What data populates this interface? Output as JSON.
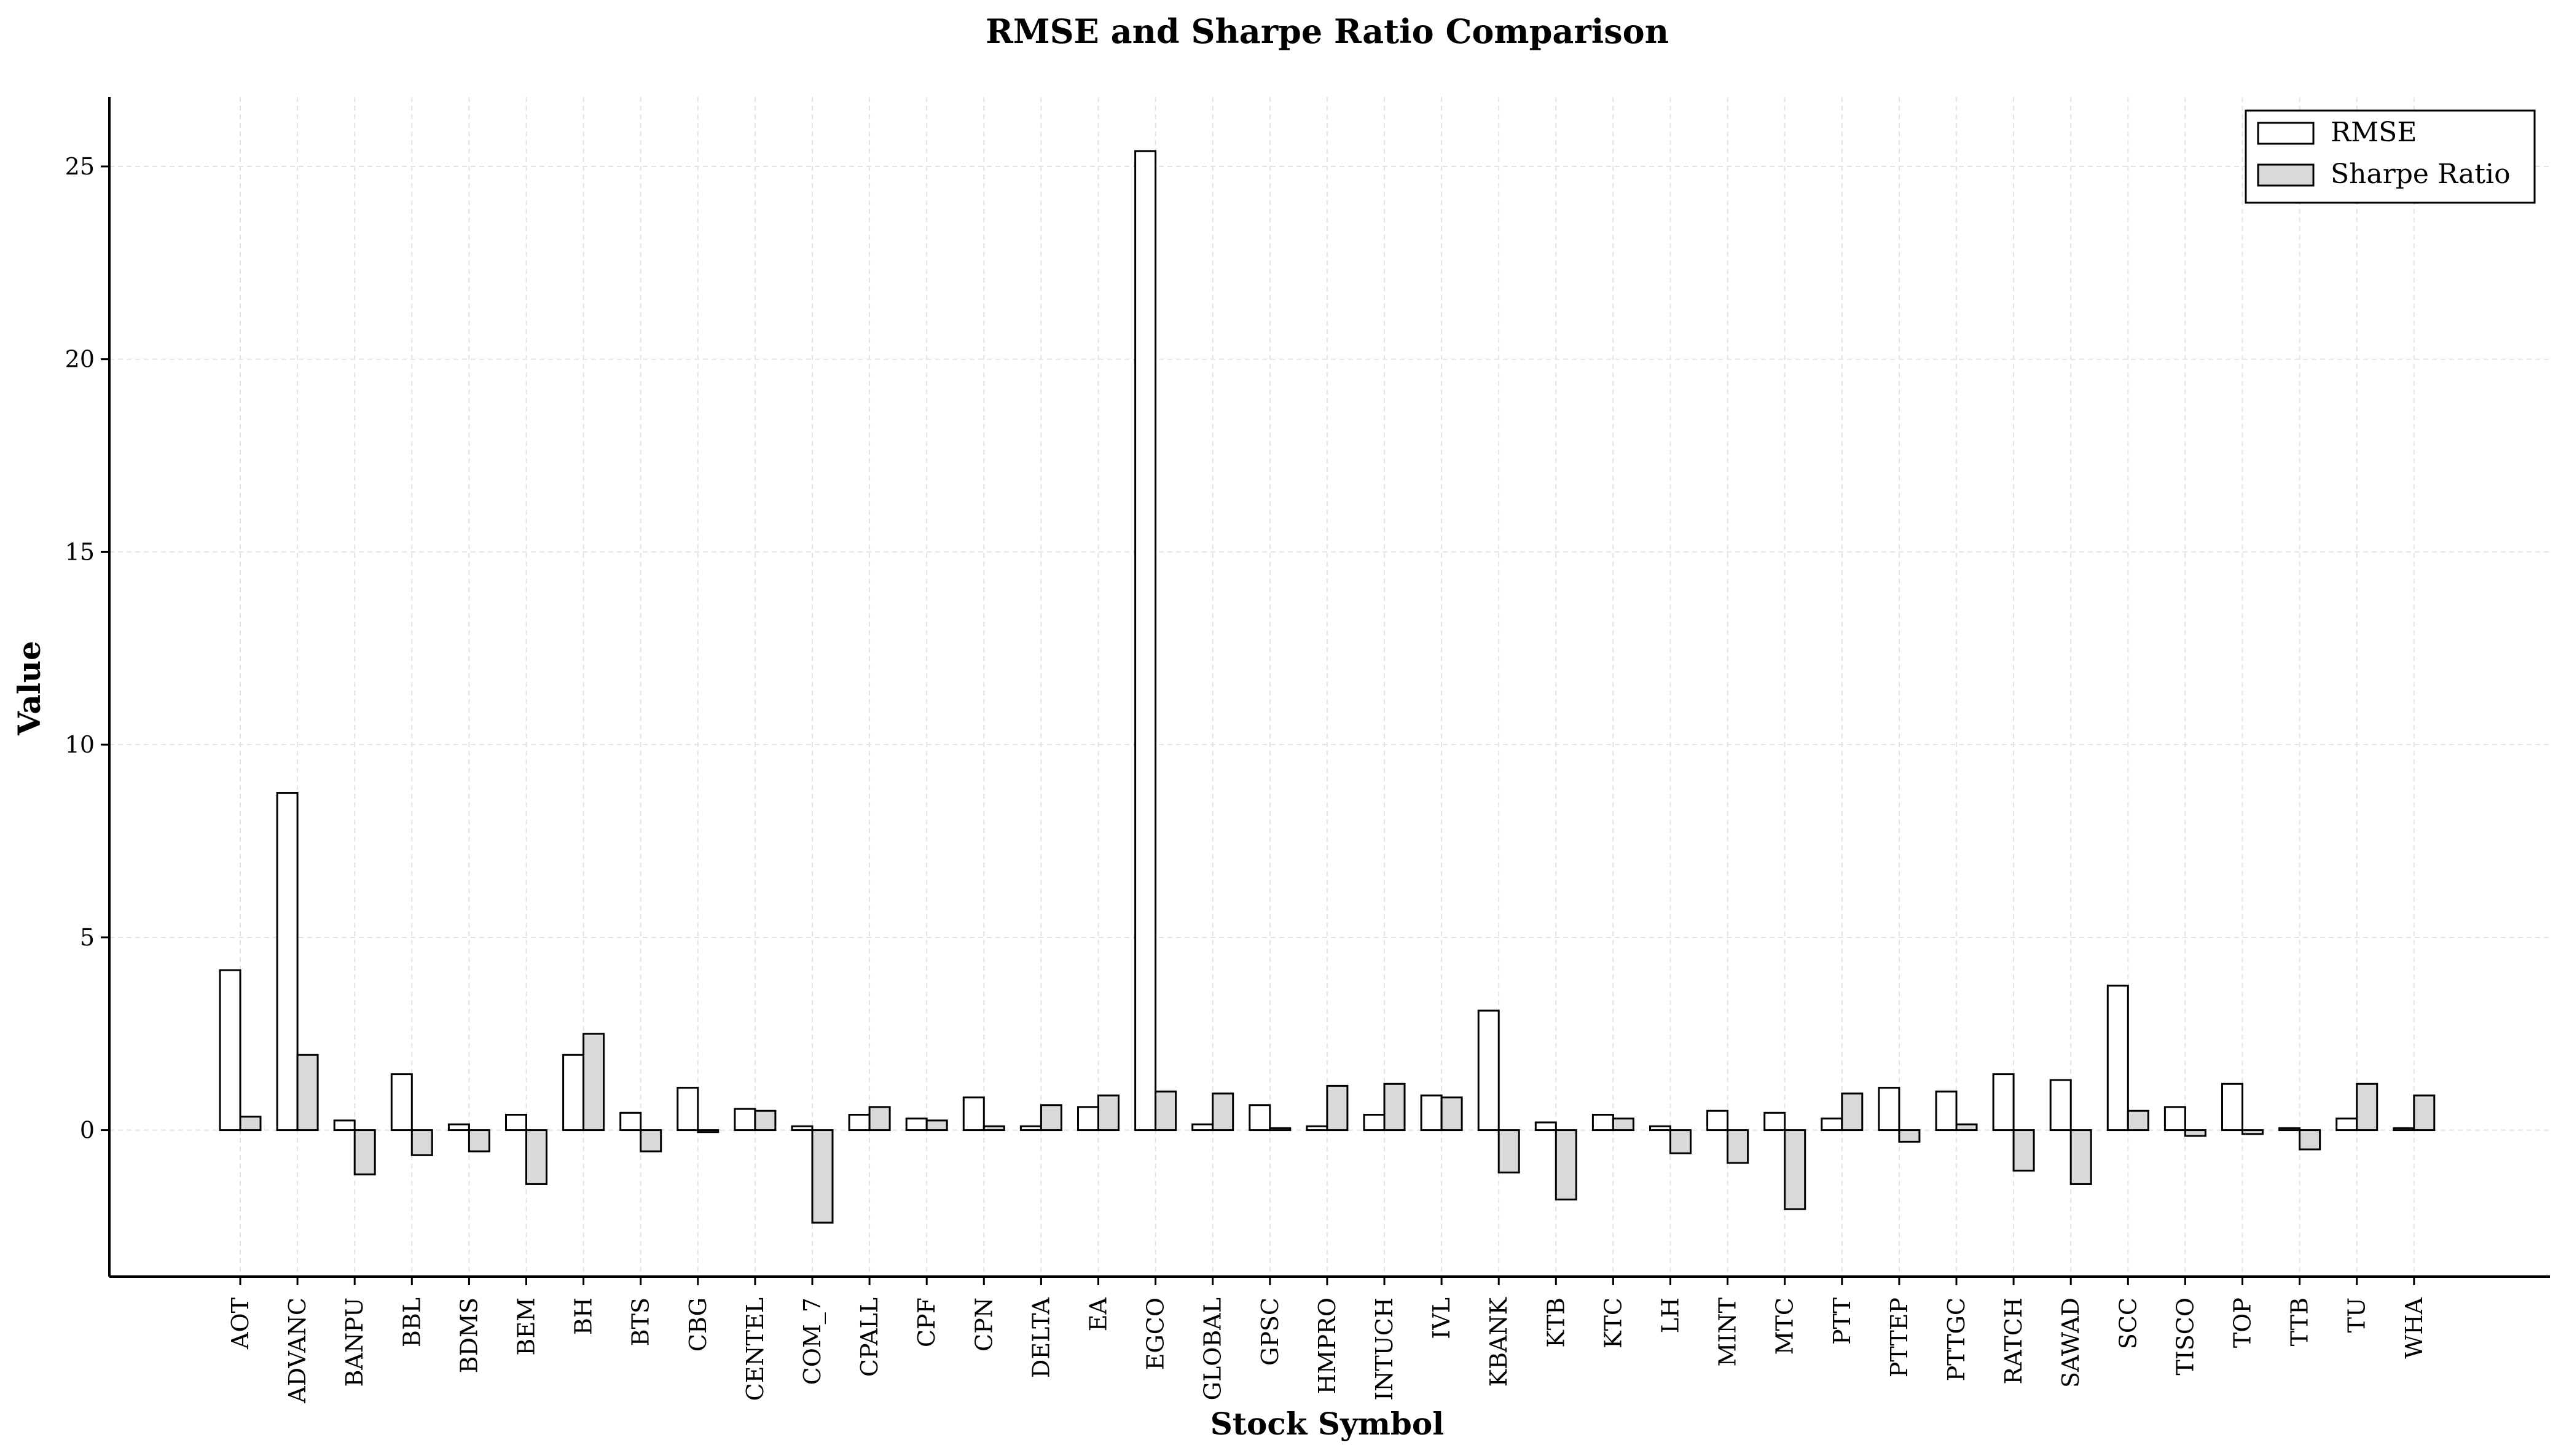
{
  "chart_data": {
    "type": "bar",
    "title": "RMSE and Sharpe Ratio Comparison",
    "xlabel": "Stock Symbol",
    "ylabel": "Value",
    "ylim": [
      -3.8,
      26.8
    ],
    "yticks": [
      0,
      5,
      10,
      15,
      20,
      25
    ],
    "grid": true,
    "legend_position": "top-right",
    "categories": [
      "AOT",
      "ADVANC",
      "BANPU",
      "BBL",
      "BDMS",
      "BEM",
      "BH",
      "BTS",
      "CBG",
      "CENTEL",
      "COM_7",
      "CPALL",
      "CPF",
      "CPN",
      "DELTA",
      "EA",
      "EGCO",
      "GLOBAL",
      "GPSC",
      "HMPRO",
      "INTUCH",
      "IVL",
      "KBANK",
      "KTB",
      "KTC",
      "LH",
      "MINT",
      "MTC",
      "PTT",
      "PTTEP",
      "PTTGC",
      "RATCH",
      "SAWAD",
      "SCC",
      "TISCO",
      "TOP",
      "TTB",
      "TU",
      "WHA"
    ],
    "series": [
      {
        "name": "RMSE",
        "color": "#ffffff",
        "values": [
          4.15,
          8.75,
          0.25,
          1.45,
          0.15,
          0.4,
          1.95,
          0.45,
          1.1,
          0.55,
          0.1,
          0.4,
          0.3,
          0.85,
          0.1,
          0.6,
          25.4,
          0.15,
          0.65,
          0.1,
          0.4,
          0.9,
          3.1,
          0.2,
          0.4,
          0.1,
          0.5,
          0.45,
          0.3,
          1.1,
          1.0,
          1.45,
          1.3,
          3.75,
          0.6,
          1.2,
          0.05,
          0.3,
          0.05
        ]
      },
      {
        "name": "Sharpe Ratio",
        "color": "#d9d9d9",
        "values": [
          0.35,
          1.95,
          -1.15,
          -0.65,
          -0.55,
          -1.4,
          2.5,
          -0.55,
          -0.05,
          0.5,
          -2.4,
          0.6,
          0.25,
          0.1,
          0.65,
          0.9,
          1.0,
          0.95,
          0.05,
          1.15,
          1.2,
          0.85,
          -1.1,
          -1.8,
          0.3,
          -0.6,
          -0.85,
          -2.05,
          0.95,
          -0.3,
          0.15,
          -1.05,
          -1.4,
          0.5,
          -0.15,
          -0.1,
          -0.5,
          1.2,
          0.9
        ]
      }
    ]
  }
}
